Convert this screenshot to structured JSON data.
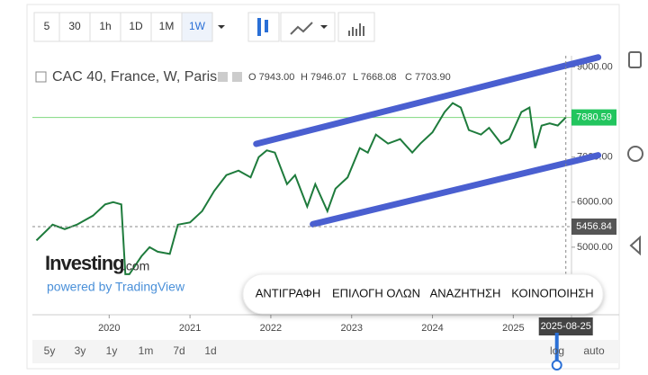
{
  "toolbar": {
    "intervals": [
      "5",
      "30",
      "1h",
      "1D",
      "1M",
      "1W"
    ],
    "active": "1W"
  },
  "legend": {
    "title": "CAC 40, France, W, Paris",
    "ohlc": [
      "O 7943.00",
      "H 7946.07",
      "L 7668.08",
      "C 7703.90"
    ]
  },
  "watermark": {
    "brand": "Investing",
    "suffix": ".com",
    "powered": "powered by TradingView"
  },
  "context_menu": [
    "ΑΝΤΙΓΡΑΦΗ",
    "ΕΠΙΛΟΓΗ ΟΛΩΝ",
    "ΑΝΑΖΗΤΗΣΗ",
    "ΚΟΙΝΟΠΟΙΗΣΗ"
  ],
  "ranges": [
    "5y",
    "3y",
    "1y",
    "1m",
    "7d",
    "1d"
  ],
  "scale_buttons": [
    "log",
    "auto"
  ],
  "chart_data": {
    "type": "line",
    "x": [
      2019.1,
      2019.3,
      2019.45,
      2019.6,
      2019.8,
      2019.95,
      2020.05,
      2020.15,
      2020.2,
      2020.25,
      2020.4,
      2020.5,
      2020.6,
      2020.75,
      2020.85,
      2021.0,
      2021.15,
      2021.3,
      2021.45,
      2021.6,
      2021.75,
      2021.85,
      2021.95,
      2022.05,
      2022.2,
      2022.3,
      2022.45,
      2022.55,
      2022.7,
      2022.8,
      2022.95,
      2023.1,
      2023.2,
      2023.3,
      2023.45,
      2023.6,
      2023.75,
      2023.85,
      2024.0,
      2024.15,
      2024.25,
      2024.35,
      2024.45,
      2024.6,
      2024.7,
      2024.85,
      2024.95,
      2025.1,
      2025.2,
      2025.27,
      2025.35,
      2025.45,
      2025.55,
      2025.65
    ],
    "series": [
      {
        "color": "#1e7b3c",
        "values": [
          5150,
          5500,
          5400,
          5500,
          5700,
          5950,
          6000,
          5950,
          4400,
          4400,
          4800,
          5000,
          4900,
          4850,
          5500,
          5550,
          5800,
          6250,
          6600,
          6700,
          6550,
          7000,
          7150,
          7100,
          6400,
          6600,
          5900,
          6400,
          5800,
          6300,
          6550,
          7200,
          7100,
          7500,
          7300,
          7400,
          7100,
          7300,
          7550,
          8000,
          8200,
          8100,
          7600,
          7500,
          7650,
          7300,
          7400,
          8000,
          8100,
          7200,
          7700,
          7750,
          7700,
          7880
        ]
      }
    ],
    "trendlines": [
      {
        "color": "#4a5fd0",
        "x": [
          2021.82,
          2026.05
        ],
        "values": [
          7294,
          9215
        ]
      },
      {
        "color": "#4a5fd0",
        "x": [
          2022.52,
          2026.05
        ],
        "values": [
          5510,
          7040
        ]
      }
    ],
    "price_line": {
      "value": 7880.59,
      "label": "7880.59"
    },
    "crosshair": {
      "value": 5456.84,
      "label": "5456.84",
      "date": "2025-08-25",
      "x": 2025.65
    },
    "xlim": [
      2019.05,
      2025.72
    ],
    "ylim": [
      3500,
      9250
    ],
    "xticks": [
      2020,
      2021,
      2022,
      2023,
      2024,
      2025
    ],
    "yticks": [
      {
        "value": 5000,
        "label": "5000.00"
      },
      {
        "value": 6000,
        "label": "6000.00"
      },
      {
        "value": 7000,
        "label": "7000.00"
      },
      {
        "value": 9000,
        "label": "9000.00"
      }
    ]
  }
}
